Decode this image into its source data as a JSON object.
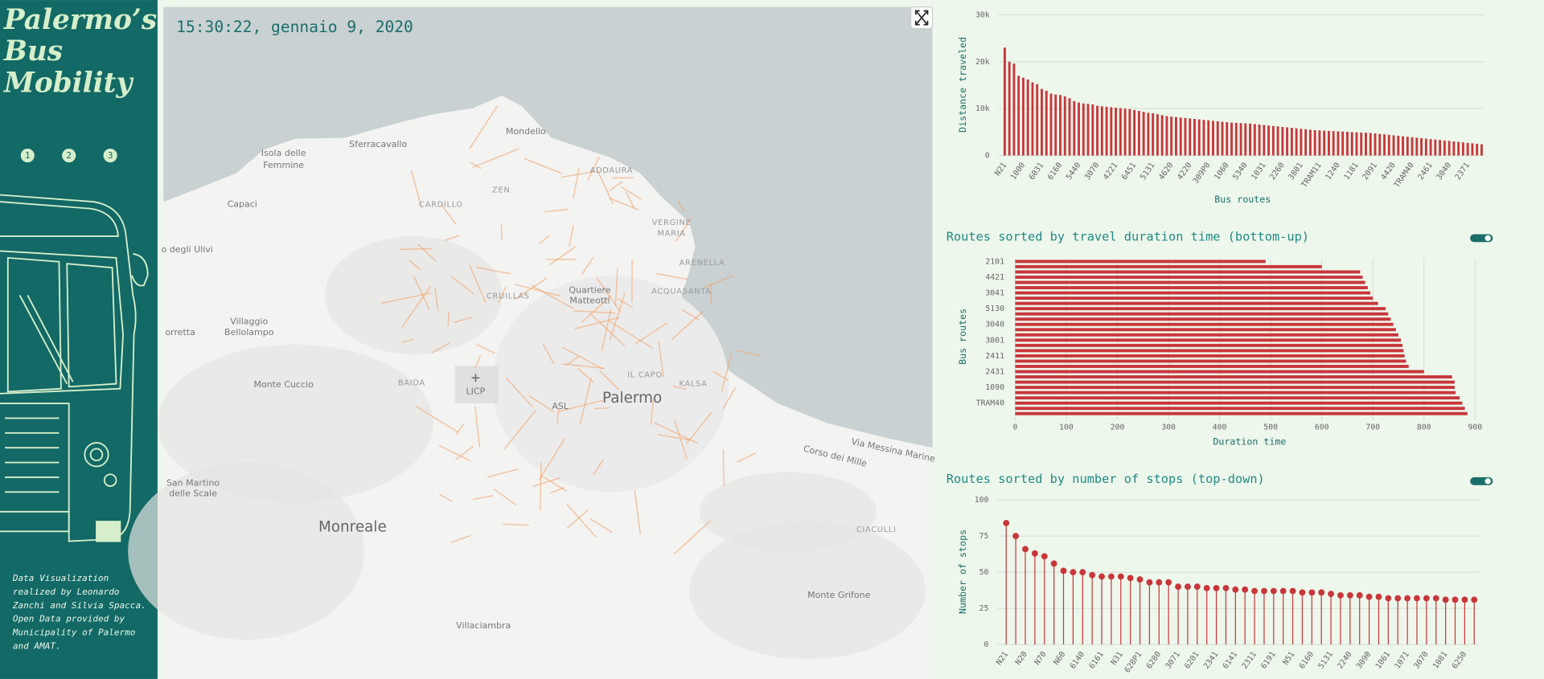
{
  "sidebar": {
    "title_lines": [
      "Palermo’s",
      "Bus",
      "Mobility"
    ],
    "nav": [
      "1",
      "2",
      "3"
    ],
    "credits": [
      "Data Visualization",
      "realized by Leonardo",
      "Zanchi and Silvia Spacca.",
      "Open Data provided by",
      "Municipality of Palermo",
      "and AMAT."
    ]
  },
  "map": {
    "timestamp": "15:30:22, gennaio 9, 2020",
    "places": [
      "Mondello",
      "Sferracavallo",
      "Isola delle",
      "Femmine",
      "ADDAURA",
      "ZEN",
      "CARDILLO",
      "Capaci",
      "VERGINE",
      "MARIA",
      "o degli Ulivi",
      "ARENELLA",
      "Quartiere",
      "Matteotti",
      "ACQUASANTA",
      "CRUILLAS",
      "Villaggio",
      "Bellolampo",
      "orretta",
      "Monte Cuccio",
      "BAIDA",
      "LICP",
      "IL CAPO",
      "KALSA",
      "ASL",
      "Palermo",
      "Via Messina Marine",
      "Corso dei Mille",
      "San Martino",
      "delle Scale",
      "Monreale",
      "CIACULLI",
      "Monte Grifone",
      "Villaciambra"
    ]
  },
  "chart_data": [
    {
      "type": "bar",
      "x_label": "Bus routes",
      "y_label": "Distance traveled",
      "color": "#c8373b",
      "grid": true,
      "ylim": [
        0,
        30000
      ],
      "yticks": [
        0,
        {
          "value": 10000,
          "label": "10k"
        },
        {
          "value": 20000,
          "label": "20k"
        },
        {
          "value": 30000,
          "label": "30k"
        }
      ],
      "categories": [
        "N21",
        null,
        null,
        null,
        "1000",
        null,
        null,
        null,
        "6031",
        null,
        null,
        null,
        "6160",
        null,
        null,
        null,
        "5440",
        null,
        null,
        null,
        "3070",
        null,
        null,
        null,
        "4221",
        null,
        null,
        null,
        "6451",
        null,
        null,
        null,
        "5131",
        null,
        null,
        null,
        "4620",
        null,
        null,
        null,
        "4220",
        null,
        null,
        null,
        "309P0",
        null,
        null,
        null,
        "1060",
        null,
        null,
        null,
        "5340",
        null,
        null,
        null,
        "1031",
        null,
        null,
        null,
        "2260",
        null,
        null,
        null,
        "3801",
        null,
        null,
        null,
        "TRAM11",
        null,
        null,
        null,
        "1240",
        null,
        null,
        null,
        "1181",
        null,
        null,
        null,
        "2091",
        null,
        null,
        null,
        "4420",
        null,
        null,
        null,
        "TRAM40",
        null,
        null,
        null,
        "2461",
        null,
        null,
        null,
        "3040",
        null,
        null,
        null,
        "2371",
        null,
        null,
        null
      ],
      "values": [
        23000,
        20000,
        19600,
        17000,
        16600,
        16200,
        15600,
        15200,
        14200,
        13800,
        13200,
        13000,
        12900,
        12600,
        12200,
        11600,
        11300,
        11100,
        11000,
        10900,
        10600,
        10500,
        10400,
        10300,
        10200,
        10100,
        10000,
        9900,
        9700,
        9500,
        9300,
        9100,
        9000,
        8800,
        8600,
        8400,
        8300,
        8200,
        8100,
        8000,
        7900,
        7800,
        7700,
        7600,
        7500,
        7400,
        7300,
        7200,
        7100,
        7000,
        6950,
        6900,
        6850,
        6800,
        6700,
        6600,
        6500,
        6400,
        6300,
        6200,
        6100,
        6000,
        5900,
        5800,
        5700,
        5600,
        5500,
        5400,
        5350,
        5300,
        5250,
        5200,
        5150,
        5100,
        5050,
        5000,
        4950,
        4900,
        4850,
        4800,
        4700,
        4600,
        4500,
        4400,
        4300,
        4200,
        4100,
        4000,
        3900,
        3800,
        3700,
        3600,
        3500,
        3400,
        3300,
        3200,
        3100,
        3000,
        2900,
        2800,
        2700,
        2600,
        2500,
        2400
      ]
    },
    {
      "type": "hbar",
      "title": "Routes sorted by travel duration time (bottom-up)",
      "x_label": "Duration time",
      "y_label": "Bus routes",
      "color": "#c8373b",
      "grid": true,
      "xlim": [
        0,
        900
      ],
      "xticks": [
        0,
        100,
        200,
        300,
        400,
        500,
        600,
        700,
        800,
        900
      ],
      "categories": [
        "2101",
        null,
        null,
        "4421",
        null,
        null,
        "3041",
        null,
        null,
        "5130",
        null,
        null,
        "3040",
        null,
        null,
        "3801",
        null,
        null,
        "2411",
        null,
        null,
        "2431",
        null,
        null,
        "1090",
        null,
        null,
        "TRAM40",
        null,
        null
      ],
      "values": [
        490,
        600,
        675,
        680,
        685,
        690,
        695,
        700,
        710,
        725,
        730,
        735,
        740,
        745,
        750,
        755,
        758,
        760,
        762,
        765,
        770,
        800,
        855,
        860,
        860,
        862,
        870,
        875,
        880,
        885
      ]
    },
    {
      "type": "lollipop",
      "title": "Routes sorted by number of stops (top-down)",
      "y_label": "Number of stops",
      "color": "#c8373b",
      "grid": true,
      "ylim": [
        0,
        100
      ],
      "yticks": [
        0,
        25,
        50,
        75,
        100
      ],
      "categories": [
        "N21",
        null,
        "N20",
        null,
        "N70",
        null,
        "N60",
        null,
        "6140",
        null,
        "6161",
        null,
        "N31",
        null,
        "628P1",
        null,
        "6280",
        null,
        "3071",
        null,
        "6201",
        null,
        "2341",
        null,
        "6141",
        null,
        "2311",
        null,
        "6191",
        null,
        "N51",
        null,
        "6160",
        null,
        "5131",
        null,
        "2240",
        null,
        "3090",
        null,
        "1061",
        null,
        "1071",
        null,
        "3070",
        null,
        "1081",
        null,
        "6250",
        null
      ],
      "values": [
        84,
        75,
        66,
        63,
        61,
        56,
        51,
        50,
        50,
        48,
        47,
        47,
        47,
        46,
        45,
        43,
        43,
        43,
        40,
        40,
        40,
        39,
        39,
        39,
        38,
        38,
        37,
        37,
        37,
        37,
        37,
        36,
        36,
        36,
        35,
        34,
        34,
        34,
        33,
        33,
        32,
        32,
        32,
        32,
        32,
        32,
        31,
        31,
        31,
        31
      ]
    }
  ]
}
